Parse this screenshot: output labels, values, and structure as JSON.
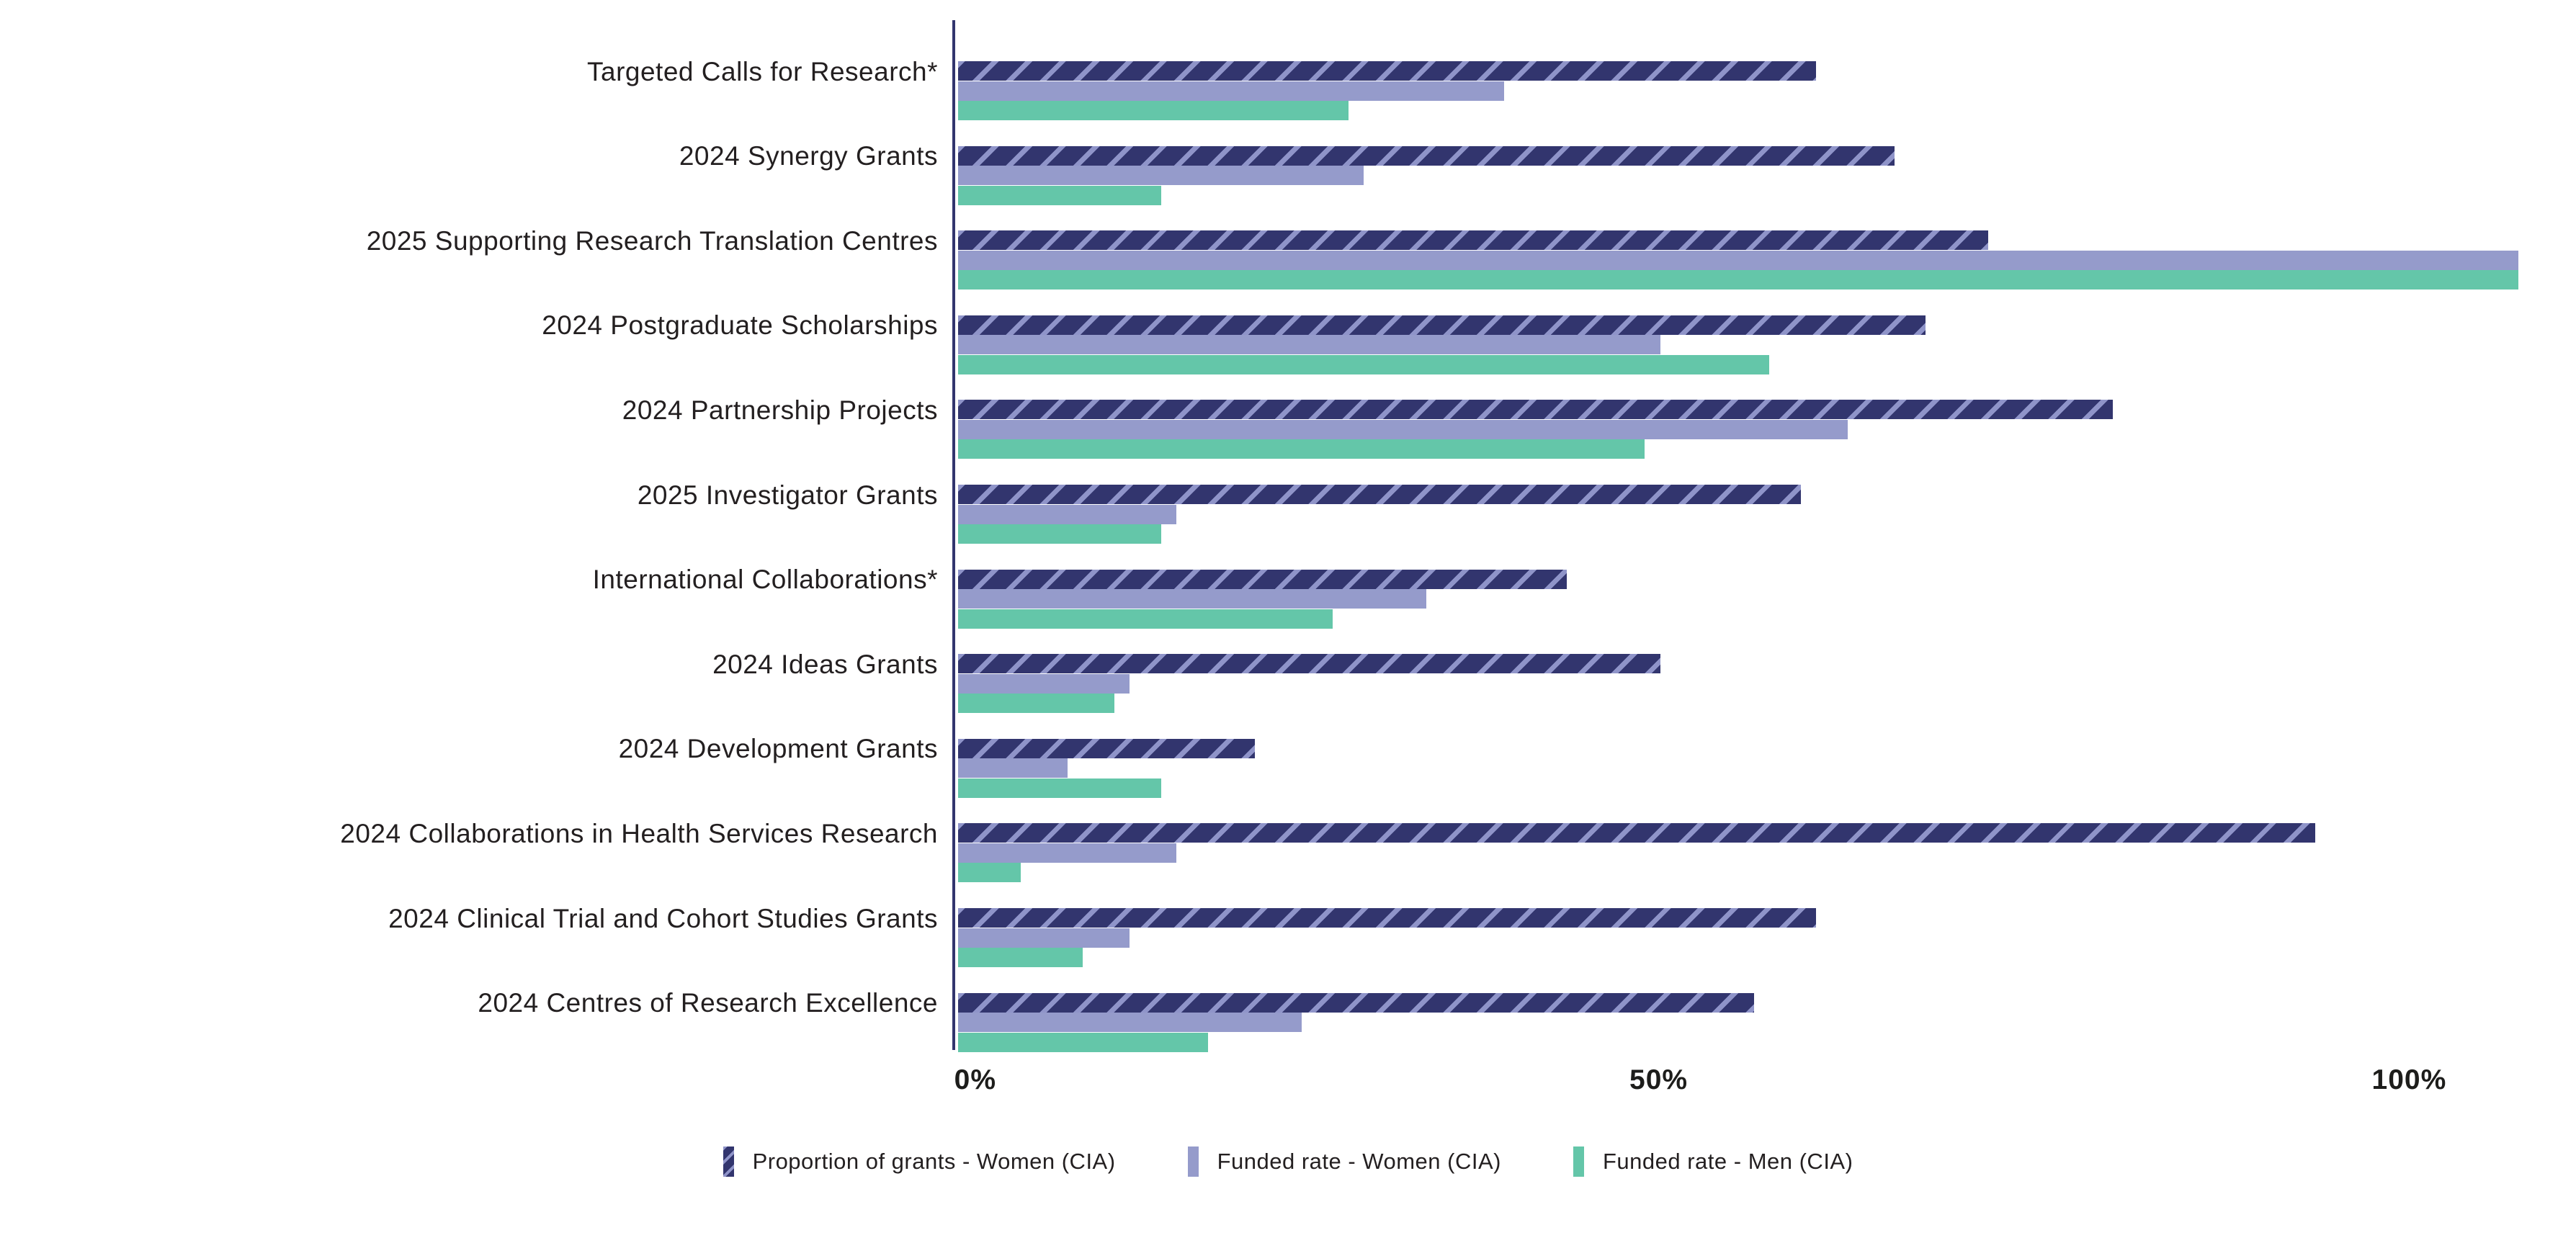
{
  "chart_data": {
    "type": "bar",
    "orientation": "horizontal",
    "title": "",
    "xlabel": "",
    "ylabel": "",
    "xlim": [
      0,
      100
    ],
    "grid": false,
    "legend_position": "bottom",
    "categories": [
      "Targeted Calls for Research*",
      "2024 Synergy Grants",
      "2025 Supporting Research Translation Centres",
      "2024 Postgraduate Scholarships",
      "2024 Partnership Projects",
      "2025 Investigator Grants",
      "International Collaborations*",
      "2024 Ideas Grants",
      "2024 Development Grants",
      "2024 Collaborations in Health Services Research",
      "2024 Clinical Trial and Cohort Studies Grants",
      "2024 Centres of Research Excellence"
    ],
    "series": [
      {
        "name": "Proportion of grants - Women (CIA)",
        "color": "#32356E",
        "hatch": true,
        "hatch_stripe_color": "#8F94C9",
        "values": [
          55,
          60,
          66,
          62,
          74,
          54,
          39,
          45,
          19,
          87,
          55,
          51
        ]
      },
      {
        "name": "Funded rate - Women (CIA)",
        "color": "#959BCB",
        "hatch": false,
        "values": [
          35,
          26,
          100,
          45,
          57,
          14,
          30,
          11,
          7,
          14,
          11,
          22
        ]
      },
      {
        "name": "Funded rate - Men (CIA)",
        "color": "#64C6A9",
        "hatch": false,
        "values": [
          25,
          13,
          100,
          52,
          44,
          13,
          24,
          10,
          13,
          4,
          8,
          16
        ]
      }
    ],
    "ticks": [
      {
        "label": "0%",
        "x_pct": 1.1
      },
      {
        "label": "50%",
        "x_pct": 44.9
      },
      {
        "label": "100%",
        "x_pct": 93.0
      }
    ]
  },
  "colors": {
    "axis": "#32356E",
    "text": "#231F20",
    "background": "#FFFFFF"
  }
}
